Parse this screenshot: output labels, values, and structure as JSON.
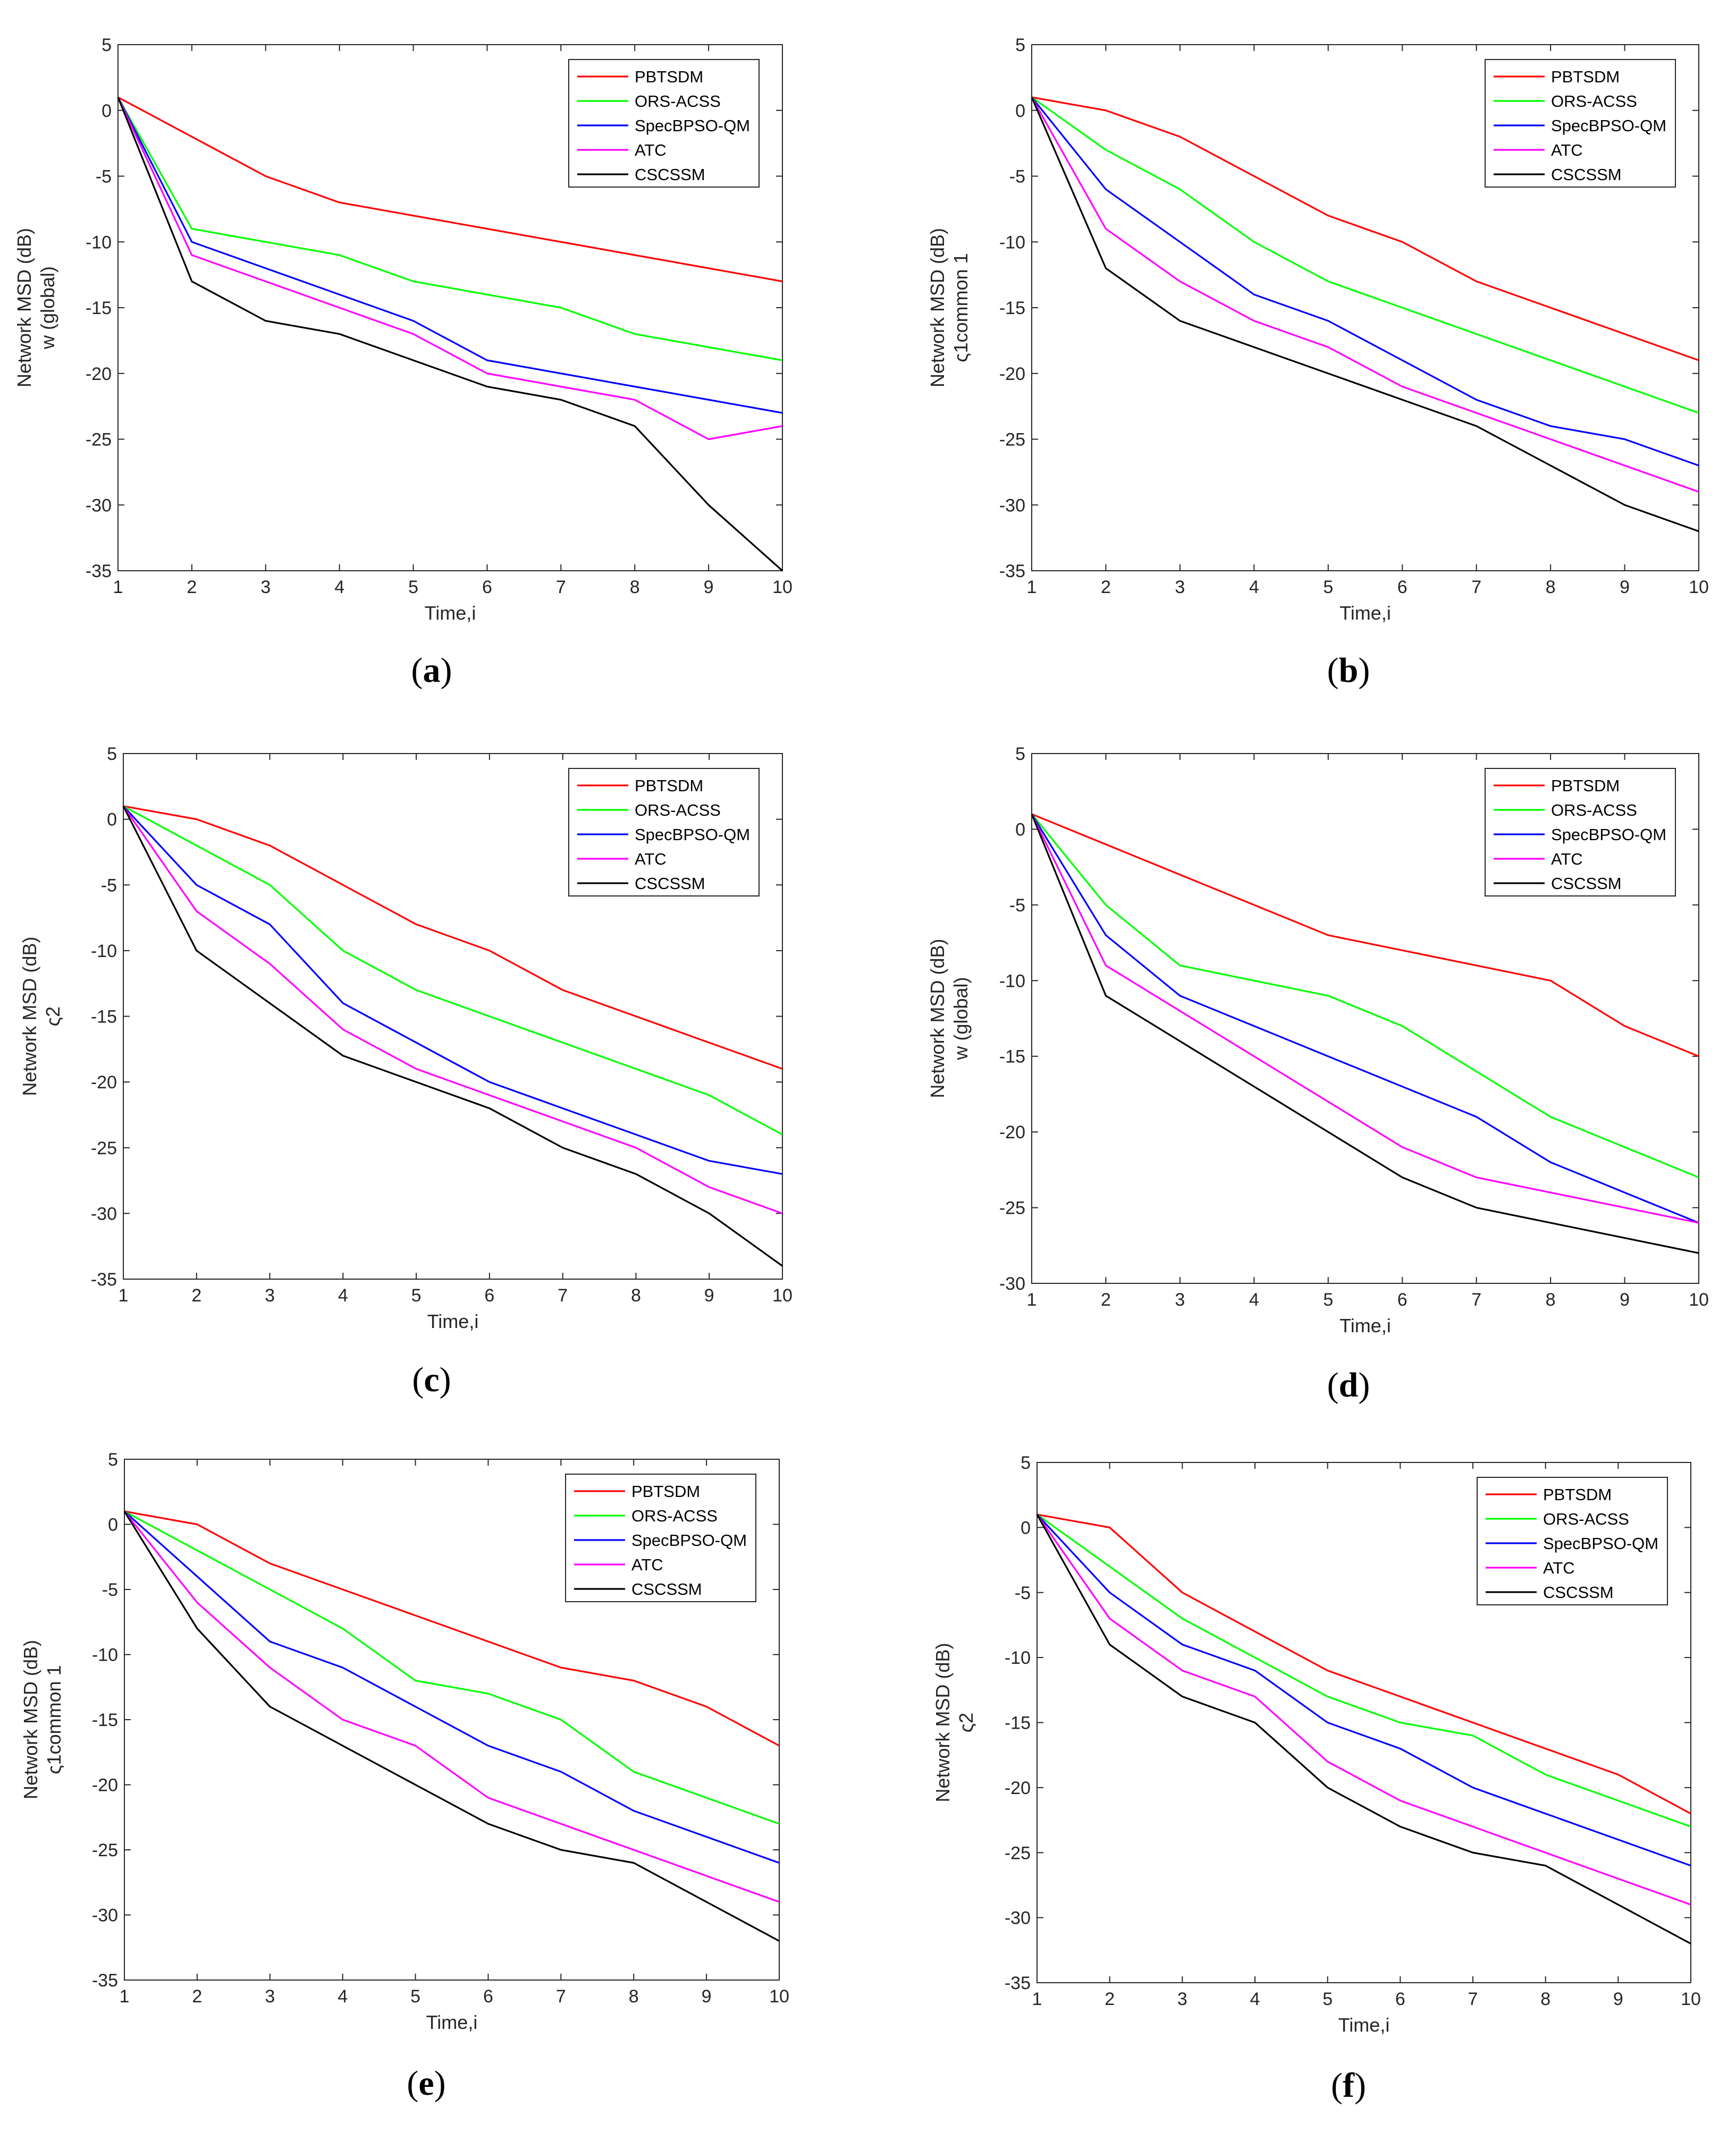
{
  "figure": {
    "colors": {
      "PBTSDM": "#ff0000",
      "ORS-ACSS": "#00ff00",
      "SpecBPSO-QM": "#0000ff",
      "ATC": "#ff00ff",
      "CSCSSM": "#000000"
    },
    "legend_order": [
      "PBTSDM",
      "ORS-ACSS",
      "SpecBPSO-QM",
      "ATC",
      "CSCSSM"
    ]
  },
  "chart_data": [
    {
      "id": "a",
      "type": "line",
      "panel_label": "a",
      "xlabel": "Time,i",
      "ylabel_line1": "Network MSD (dB)",
      "ylabel_line2": "w (global)",
      "xlim": [
        1,
        10
      ],
      "ylim": [
        -35,
        5
      ],
      "xticks": [
        1,
        2,
        3,
        4,
        5,
        6,
        7,
        8,
        9,
        10
      ],
      "yticks": [
        5,
        0,
        -5,
        -10,
        -15,
        -20,
        -25,
        -30,
        -35
      ],
      "legend_position": "top-right",
      "x": [
        1,
        2,
        3,
        4,
        5,
        6,
        7,
        8,
        9,
        10
      ],
      "series": [
        {
          "name": "PBTSDM",
          "values": [
            1,
            -2,
            -5,
            -7,
            -8,
            -9,
            -10,
            -11,
            -12,
            -13
          ]
        },
        {
          "name": "ORS-ACSS",
          "values": [
            1,
            -9,
            -10,
            -11,
            -13,
            -14,
            -15,
            -17,
            -18,
            -19
          ]
        },
        {
          "name": "SpecBPSO-QM",
          "values": [
            1,
            -10,
            -12,
            -14,
            -16,
            -19,
            -20,
            -21,
            -22,
            -23
          ]
        },
        {
          "name": "ATC",
          "values": [
            1,
            -11,
            -13,
            -15,
            -17,
            -20,
            -21,
            -22,
            -25,
            -24
          ]
        },
        {
          "name": "CSCSSM",
          "values": [
            1,
            -13,
            -16,
            -17,
            -19,
            -21,
            -22,
            -24,
            -30,
            -35
          ]
        }
      ]
    },
    {
      "id": "b",
      "type": "line",
      "panel_label": "b",
      "xlabel": "Time,i",
      "ylabel_line1": "Network MSD (dB)",
      "ylabel_line2": "ς1common 1",
      "xlim": [
        1,
        10
      ],
      "ylim": [
        -35,
        5
      ],
      "xticks": [
        1,
        2,
        3,
        4,
        5,
        6,
        7,
        8,
        9,
        10
      ],
      "yticks": [
        5,
        0,
        -5,
        -10,
        -15,
        -20,
        -25,
        -30,
        -35
      ],
      "legend_position": "top-right",
      "x": [
        1,
        2,
        3,
        4,
        5,
        6,
        7,
        8,
        9,
        10
      ],
      "series": [
        {
          "name": "PBTSDM",
          "values": [
            1,
            0,
            -2,
            -5,
            -8,
            -10,
            -13,
            -15,
            -17,
            -19
          ]
        },
        {
          "name": "ORS-ACSS",
          "values": [
            1,
            -3,
            -6,
            -10,
            -13,
            -15,
            -17,
            -19,
            -21,
            -23
          ]
        },
        {
          "name": "SpecBPSO-QM",
          "values": [
            1,
            -6,
            -10,
            -14,
            -16,
            -19,
            -22,
            -24,
            -25,
            -27
          ]
        },
        {
          "name": "ATC",
          "values": [
            1,
            -9,
            -13,
            -16,
            -18,
            -21,
            -23,
            -25,
            -27,
            -29
          ]
        },
        {
          "name": "CSCSSM",
          "values": [
            1,
            -12,
            -16,
            -18,
            -20,
            -22,
            -24,
            -27,
            -30,
            -32
          ]
        }
      ]
    },
    {
      "id": "c",
      "type": "line",
      "panel_label": "c",
      "xlabel": "Time,i",
      "ylabel_line1": "Network MSD (dB)",
      "ylabel_line2": "ς2",
      "xlim": [
        1,
        10
      ],
      "ylim": [
        -35,
        5
      ],
      "xticks": [
        1,
        2,
        3,
        4,
        5,
        6,
        7,
        8,
        9,
        10
      ],
      "yticks": [
        5,
        0,
        -5,
        -10,
        -15,
        -20,
        -25,
        -30,
        -35
      ],
      "legend_position": "top-right",
      "x": [
        1,
        2,
        3,
        4,
        5,
        6,
        7,
        8,
        9,
        10
      ],
      "series": [
        {
          "name": "PBTSDM",
          "values": [
            1,
            0,
            -2,
            -5,
            -8,
            -10,
            -13,
            -15,
            -17,
            -19
          ]
        },
        {
          "name": "ORS-ACSS",
          "values": [
            1,
            -2,
            -5,
            -10,
            -13,
            -15,
            -17,
            -19,
            -21,
            -24
          ]
        },
        {
          "name": "SpecBPSO-QM",
          "values": [
            1,
            -5,
            -8,
            -14,
            -17,
            -20,
            -22,
            -24,
            -26,
            -27
          ]
        },
        {
          "name": "ATC",
          "values": [
            1,
            -7,
            -11,
            -16,
            -19,
            -21,
            -23,
            -25,
            -28,
            -30
          ]
        },
        {
          "name": "CSCSSM",
          "values": [
            1,
            -10,
            -14,
            -18,
            -20,
            -22,
            -25,
            -27,
            -30,
            -34
          ]
        }
      ]
    },
    {
      "id": "d",
      "type": "line",
      "panel_label": "d",
      "xlabel": "Time,i",
      "ylabel_line1": "Network MSD (dB)",
      "ylabel_line2": "w (global)",
      "xlim": [
        1,
        10
      ],
      "ylim": [
        -30,
        5
      ],
      "xticks": [
        1,
        2,
        3,
        4,
        5,
        6,
        7,
        8,
        9,
        10
      ],
      "yticks": [
        5,
        0,
        -5,
        -10,
        -15,
        -20,
        -25,
        -30
      ],
      "legend_position": "top-right",
      "x": [
        1,
        2,
        3,
        4,
        5,
        6,
        7,
        8,
        9,
        10
      ],
      "series": [
        {
          "name": "PBTSDM",
          "values": [
            1,
            -1,
            -3,
            -5,
            -7,
            -8,
            -9,
            -10,
            -13,
            -15
          ]
        },
        {
          "name": "ORS-ACSS",
          "values": [
            1,
            -5,
            -9,
            -10,
            -11,
            -13,
            -16,
            -19,
            -21,
            -23
          ]
        },
        {
          "name": "SpecBPSO-QM",
          "values": [
            1,
            -7,
            -11,
            -13,
            -15,
            -17,
            -19,
            -22,
            -24,
            -26
          ]
        },
        {
          "name": "ATC",
          "values": [
            1,
            -9,
            -12,
            -15,
            -18,
            -21,
            -23,
            -24,
            -25,
            -26
          ]
        },
        {
          "name": "CSCSSM",
          "values": [
            1,
            -11,
            -14,
            -17,
            -20,
            -23,
            -25,
            -26,
            -27,
            -28
          ]
        }
      ]
    },
    {
      "id": "e",
      "type": "line",
      "panel_label": "e",
      "xlabel": "Time,i",
      "ylabel_line1": "Network MSD (dB)",
      "ylabel_line2": "ς1common 1",
      "xlim": [
        1,
        10
      ],
      "ylim": [
        -35,
        5
      ],
      "xticks": [
        1,
        2,
        3,
        4,
        5,
        6,
        7,
        8,
        9,
        10
      ],
      "yticks": [
        5,
        0,
        -5,
        -10,
        -15,
        -20,
        -25,
        -30,
        -35
      ],
      "legend_position": "top-right",
      "x": [
        1,
        2,
        3,
        4,
        5,
        6,
        7,
        8,
        9,
        10
      ],
      "series": [
        {
          "name": "PBTSDM",
          "values": [
            1,
            0,
            -3,
            -5,
            -7,
            -9,
            -11,
            -12,
            -14,
            -17
          ]
        },
        {
          "name": "ORS-ACSS",
          "values": [
            1,
            -2,
            -5,
            -8,
            -12,
            -13,
            -15,
            -19,
            -21,
            -23
          ]
        },
        {
          "name": "SpecBPSO-QM",
          "values": [
            1,
            -4,
            -9,
            -11,
            -14,
            -17,
            -19,
            -22,
            -24,
            -26
          ]
        },
        {
          "name": "ATC",
          "values": [
            1,
            -6,
            -11,
            -15,
            -17,
            -21,
            -23,
            -25,
            -27,
            -29
          ]
        },
        {
          "name": "CSCSSM",
          "values": [
            1,
            -8,
            -14,
            -17,
            -20,
            -23,
            -25,
            -26,
            -29,
            -32
          ]
        }
      ]
    },
    {
      "id": "f",
      "type": "line",
      "panel_label": "f",
      "xlabel": "Time,i",
      "ylabel_line1": "Network MSD (dB)",
      "ylabel_line2": "ς2",
      "xlim": [
        1,
        10
      ],
      "ylim": [
        -35,
        5
      ],
      "xticks": [
        1,
        2,
        3,
        4,
        5,
        6,
        7,
        8,
        9,
        10
      ],
      "yticks": [
        5,
        0,
        -5,
        -10,
        -15,
        -20,
        -25,
        -30,
        -35
      ],
      "legend_position": "top-right",
      "x": [
        1,
        2,
        3,
        4,
        5,
        6,
        7,
        8,
        9,
        10
      ],
      "series": [
        {
          "name": "PBTSDM",
          "values": [
            1,
            0,
            -5,
            -8,
            -11,
            -13,
            -15,
            -17,
            -19,
            -22
          ]
        },
        {
          "name": "ORS-ACSS",
          "values": [
            1,
            -3,
            -7,
            -10,
            -13,
            -15,
            -16,
            -19,
            -21,
            -23
          ]
        },
        {
          "name": "SpecBPSO-QM",
          "values": [
            1,
            -5,
            -9,
            -11,
            -15,
            -17,
            -20,
            -22,
            -24,
            -26
          ]
        },
        {
          "name": "ATC",
          "values": [
            1,
            -7,
            -11,
            -13,
            -18,
            -21,
            -23,
            -25,
            -27,
            -29
          ]
        },
        {
          "name": "CSCSSM",
          "values": [
            1,
            -9,
            -13,
            -15,
            -20,
            -23,
            -25,
            -26,
            -29,
            -32
          ]
        }
      ]
    }
  ]
}
